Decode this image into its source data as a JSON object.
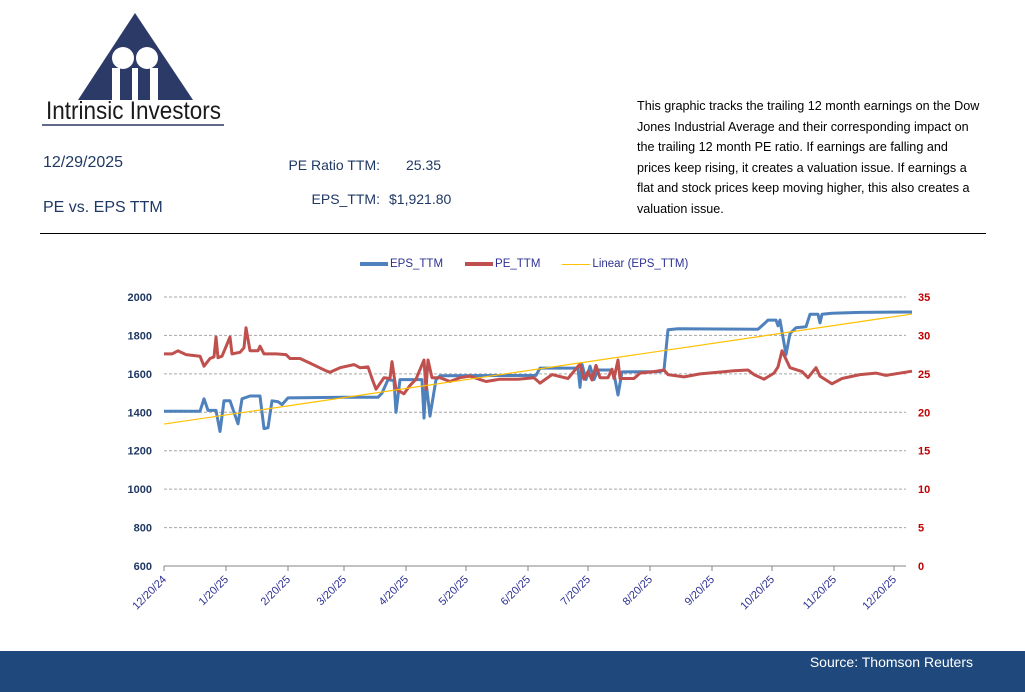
{
  "logo": {
    "text": "Intrinsic Investors",
    "color": "#2b3a67"
  },
  "header": {
    "date": "12/29/2025",
    "subtitle": "PE vs. EPS TTM",
    "pe_label": "PE Ratio TTM:",
    "pe_value": "25.35",
    "eps_label": "EPS_TTM:",
    "eps_value": "$1,921.80"
  },
  "description": "This graphic tracks the trailing 12 month earnings on the Dow Jones Industrial Average and their corresponding impact on the trailing 12 month PE ratio.  If earnings are falling and prices keep rising, it creates a valuation issue.  If earnings a flat and stock prices keep moving higher, this also creates a valuation issue.",
  "footer": {
    "source": "Source: Thomson Reuters",
    "color": "#1f497d"
  },
  "chart_data": {
    "type": "line",
    "grid": true,
    "legend_position": "top",
    "x_ticks": [
      "12/20/24",
      "1/20/25",
      "2/20/25",
      "3/20/25",
      "4/20/25",
      "5/20/25",
      "6/20/25",
      "7/20/25",
      "8/20/25",
      "9/20/25",
      "10/20/25",
      "11/20/25",
      "12/20/25"
    ],
    "x_range": [
      "12/20/24",
      "12/29/25"
    ],
    "y_left": {
      "range": [
        600,
        2000
      ],
      "ticks": [
        "600",
        "800",
        "1000",
        "1200",
        "1400",
        "1600",
        "1800",
        "2000"
      ],
      "color": "#1f3864"
    },
    "y_right": {
      "range": [
        0,
        35
      ],
      "ticks": [
        "0",
        "5",
        "10",
        "15",
        "20",
        "25",
        "30",
        "35"
      ],
      "color": "#c00000"
    },
    "legend": [
      "EPS_TTM",
      "PE_TTM",
      "Linear (EPS_TTM)"
    ],
    "series": [
      {
        "name": "EPS_TTM",
        "axis": "left",
        "color": "#4f81bd",
        "points": [
          [
            "12/20/24",
            1405
          ],
          [
            "1/7/25",
            1405
          ],
          [
            "1/9/25",
            1470
          ],
          [
            "1/11/25",
            1410
          ],
          [
            "1/15/25",
            1410
          ],
          [
            "1/17/25",
            1300
          ],
          [
            "1/19/25",
            1460
          ],
          [
            "1/22/25",
            1460
          ],
          [
            "1/26/25",
            1340
          ],
          [
            "1/28/25",
            1470
          ],
          [
            "2/1/25",
            1485
          ],
          [
            "2/6/25",
            1485
          ],
          [
            "2/8/25",
            1315
          ],
          [
            "2/10/25",
            1320
          ],
          [
            "2/12/25",
            1460
          ],
          [
            "2/15/25",
            1455
          ],
          [
            "2/17/25",
            1440
          ],
          [
            "2/20/25",
            1475
          ],
          [
            "3/20/25",
            1478
          ],
          [
            "4/6/25",
            1478
          ],
          [
            "4/8/25",
            1500
          ],
          [
            "4/11/25",
            1570
          ],
          [
            "4/14/25",
            1565
          ],
          [
            "4/15/25",
            1400
          ],
          [
            "4/17/25",
            1570
          ],
          [
            "4/28/25",
            1570
          ],
          [
            "4/29/25",
            1370
          ],
          [
            "4/30/25",
            1560
          ],
          [
            "5/2/25",
            1380
          ],
          [
            "5/5/25",
            1570
          ],
          [
            "5/7/25",
            1590
          ],
          [
            "6/24/25",
            1592
          ],
          [
            "6/26/25",
            1630
          ],
          [
            "7/15/25",
            1630
          ],
          [
            "7/16/25",
            1530
          ],
          [
            "7/17/25",
            1650
          ],
          [
            "7/19/25",
            1570
          ],
          [
            "7/21/25",
            1640
          ],
          [
            "7/23/25",
            1570
          ],
          [
            "7/25/25",
            1620
          ],
          [
            "7/31/25",
            1620
          ],
          [
            "8/2/25",
            1600
          ],
          [
            "8/4/25",
            1490
          ],
          [
            "8/6/25",
            1610
          ],
          [
            "8/25/25",
            1612
          ],
          [
            "8/27/25",
            1620
          ],
          [
            "8/29/25",
            1830
          ],
          [
            "9/3/25",
            1835
          ],
          [
            "10/13/25",
            1832
          ],
          [
            "10/16/25",
            1860
          ],
          [
            "10/18/25",
            1880
          ],
          [
            "10/22/25",
            1880
          ],
          [
            "10/23/25",
            1850
          ],
          [
            "10/24/25",
            1880
          ],
          [
            "10/27/25",
            1700
          ],
          [
            "10/29/25",
            1810
          ],
          [
            "11/1/25",
            1840
          ],
          [
            "11/6/25",
            1845
          ],
          [
            "11/8/25",
            1910
          ],
          [
            "11/12/25",
            1910
          ],
          [
            "11/13/25",
            1865
          ],
          [
            "11/14/25",
            1910
          ],
          [
            "11/19/25",
            1915
          ],
          [
            "12/3/25",
            1920
          ],
          [
            "12/29/25",
            1921.8
          ]
        ]
      },
      {
        "name": "PE_TTM",
        "axis": "right",
        "color": "#c0504d",
        "points": [
          [
            "12/20/24",
            27.6
          ],
          [
            "12/24/24",
            27.6
          ],
          [
            "12/27/24",
            28.0
          ],
          [
            "12/31/24",
            27.5
          ],
          [
            "1/7/25",
            27.3
          ],
          [
            "1/9/25",
            26.0
          ],
          [
            "1/12/25",
            27.0
          ],
          [
            "1/14/25",
            27.2
          ],
          [
            "1/15/25",
            29.8
          ],
          [
            "1/16/25",
            27.1
          ],
          [
            "1/18/25",
            27.3
          ],
          [
            "1/22/25",
            29.8
          ],
          [
            "1/23/25",
            27.6
          ],
          [
            "1/27/25",
            27.8
          ],
          [
            "1/29/25",
            28.4
          ],
          [
            "1/30/25",
            31.0
          ],
          [
            "2/1/25",
            28.0
          ],
          [
            "2/5/25",
            28.0
          ],
          [
            "2/6/25",
            28.6
          ],
          [
            "2/8/25",
            27.6
          ],
          [
            "2/14/25",
            27.6
          ],
          [
            "2/19/25",
            27.5
          ],
          [
            "2/21/25",
            27.0
          ],
          [
            "2/26/25",
            27.0
          ],
          [
            "3/3/25",
            26.4
          ],
          [
            "3/11/25",
            25.4
          ],
          [
            "3/13/25",
            25.2
          ],
          [
            "3/18/25",
            25.8
          ],
          [
            "3/25/25",
            26.2
          ],
          [
            "3/28/25",
            25.8
          ],
          [
            "4/1/25",
            25.9
          ],
          [
            "4/3/25",
            24.4
          ],
          [
            "4/5/25",
            23.0
          ],
          [
            "4/9/25",
            24.5
          ],
          [
            "4/12/25",
            24.4
          ],
          [
            "4/13/25",
            26.6
          ],
          [
            "4/15/25",
            23.0
          ],
          [
            "4/19/25",
            22.4
          ],
          [
            "4/22/25",
            23.5
          ],
          [
            "4/25/25",
            24.3
          ],
          [
            "4/29/25",
            26.8
          ],
          [
            "4/30/25",
            23.0
          ],
          [
            "5/1/25",
            26.8
          ],
          [
            "5/3/25",
            24.5
          ],
          [
            "5/7/25",
            24.5
          ],
          [
            "5/12/25",
            24.0
          ],
          [
            "5/17/25",
            24.5
          ],
          [
            "5/22/25",
            24.7
          ],
          [
            "5/30/25",
            24.0
          ],
          [
            "6/6/25",
            24.3
          ],
          [
            "6/15/25",
            24.3
          ],
          [
            "6/23/25",
            24.5
          ],
          [
            "6/26/25",
            23.8
          ],
          [
            "7/2/25",
            24.9
          ],
          [
            "7/10/25",
            24.4
          ],
          [
            "7/16/25",
            26.3
          ],
          [
            "7/18/25",
            24.3
          ],
          [
            "7/20/25",
            25.3
          ],
          [
            "7/22/25",
            24.2
          ],
          [
            "7/24/25",
            26.1
          ],
          [
            "7/26/25",
            24.5
          ],
          [
            "7/30/25",
            24.5
          ],
          [
            "8/1/25",
            25.6
          ],
          [
            "8/2/25",
            24.4
          ],
          [
            "8/4/25",
            26.8
          ],
          [
            "8/5/25",
            24.4
          ],
          [
            "8/12/25",
            24.4
          ],
          [
            "8/15/25",
            25.1
          ],
          [
            "8/22/25",
            25.3
          ],
          [
            "8/27/25",
            25.5
          ],
          [
            "8/29/25",
            24.9
          ],
          [
            "9/6/25",
            24.6
          ],
          [
            "9/14/25",
            25.0
          ],
          [
            "9/23/25",
            25.2
          ],
          [
            "10/1/25",
            25.4
          ],
          [
            "10/8/25",
            25.5
          ],
          [
            "10/11/25",
            24.9
          ],
          [
            "10/16/25",
            24.3
          ],
          [
            "10/21/25",
            25.1
          ],
          [
            "10/23/25",
            25.9
          ],
          [
            "10/25/25",
            28.0
          ],
          [
            "10/29/25",
            25.8
          ],
          [
            "11/4/25",
            25.3
          ],
          [
            "11/7/25",
            24.5
          ],
          [
            "11/11/25",
            25.8
          ],
          [
            "11/13/25",
            24.7
          ],
          [
            "11/19/25",
            23.7
          ],
          [
            "11/24/25",
            24.4
          ],
          [
            "12/3/25",
            24.9
          ],
          [
            "12/11/25",
            25.1
          ],
          [
            "12/16/25",
            24.8
          ],
          [
            "12/29/25",
            25.35
          ]
        ]
      },
      {
        "name": "Linear (EPS_TTM)",
        "axis": "left",
        "color": "#ffc000",
        "type": "linear-trend",
        "of": "EPS_TTM"
      }
    ]
  }
}
